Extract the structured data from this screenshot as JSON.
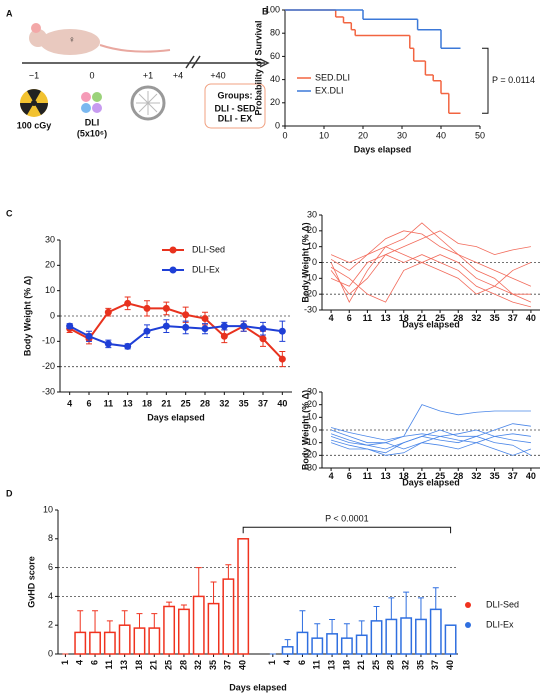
{
  "panel_a": {
    "panel": "A",
    "sex_symbol": "♀",
    "timeline": [
      "−1",
      "0",
      "+1",
      "+4",
      "+40"
    ],
    "irradiation": "100 cGy",
    "cells": "DLI",
    "dose": "(5x10⁶)",
    "groups_title": "Groups:",
    "groups": [
      "DLI - SED",
      "DLI - EX"
    ]
  },
  "chart_data": [
    {
      "type": "step",
      "panel": "B",
      "ylabel": "Probability of Survival",
      "xlabel": "Days elapsed",
      "annotation": "P = 0.0114",
      "xlim": [
        0,
        50
      ],
      "xticks": [
        0,
        10,
        20,
        30,
        40,
        50
      ],
      "ylim": [
        0,
        100
      ],
      "yticks": [
        0,
        20,
        40,
        60,
        80,
        100
      ],
      "legend": "lower left",
      "series": [
        {
          "name": "SED.DLI",
          "color": "#f26440",
          "x": [
            0,
            13,
            15,
            17,
            18,
            32,
            33,
            36,
            38,
            40,
            42,
            45
          ],
          "values": [
            100,
            94,
            89,
            83,
            78,
            67,
            56,
            44,
            39,
            28,
            11,
            11
          ]
        },
        {
          "name": "EX.DLI",
          "color": "#3b78d8",
          "x": [
            0,
            20,
            34,
            40,
            45
          ],
          "values": [
            100,
            92,
            83,
            67,
            67
          ]
        }
      ]
    },
    {
      "type": "line",
      "panel": "C",
      "ylabel": "Body Weight (% Δ)",
      "xlabel": "Days elapsed",
      "categories": [
        "4",
        "6",
        "11",
        "13",
        "18",
        "21",
        "25",
        "28",
        "32",
        "35",
        "37",
        "40"
      ],
      "ylim": [
        -30,
        30
      ],
      "yticks": [
        -30,
        -20,
        -10,
        0,
        10,
        20,
        30
      ],
      "reference_lines": [
        0,
        -20
      ],
      "legend": "upper right",
      "series": [
        {
          "name": "DLI-Sed",
          "color": "#e8321e",
          "values": [
            -5,
            -9,
            1.5,
            5,
            3,
            3,
            0.5,
            -1,
            -8,
            -4,
            -9,
            -17
          ],
          "errors": [
            1.5,
            2,
            1.5,
            2.5,
            3,
            2.5,
            3,
            2.5,
            2.5,
            2,
            3,
            3
          ]
        },
        {
          "name": "DLI-Ex",
          "color": "#1f3fd6",
          "values": [
            -4,
            -8,
            -11,
            -12,
            -6,
            -4,
            -4.5,
            -5,
            -4,
            -4,
            -5,
            -6
          ],
          "errors": [
            1,
            2,
            1.5,
            1,
            2.5,
            2.5,
            2.5,
            2,
            1.5,
            2,
            2.5,
            4
          ]
        }
      ]
    },
    {
      "type": "spaghetti",
      "ylabel": "Body Weight (% Δ)",
      "xlabel": "Days elapsed",
      "color": "#f26b5b",
      "categories": [
        "4",
        "6",
        "11",
        "13",
        "18",
        "21",
        "25",
        "28",
        "32",
        "35",
        "37",
        "40"
      ],
      "ylim": [
        -30,
        30
      ],
      "yticks": [
        -30,
        -20,
        -10,
        0,
        10,
        20,
        30
      ],
      "reference_lines": [
        0,
        -20
      ],
      "series": [
        {
          "values": [
            -5,
            -20,
            -10,
            5,
            10,
            15,
            20,
            12,
            10,
            5,
            8,
            10
          ]
        },
        {
          "values": [
            0,
            -25,
            -5,
            10,
            15,
            25,
            15,
            5,
            0,
            -5,
            -10,
            -15
          ]
        },
        {
          "values": [
            -10,
            -15,
            0,
            5,
            0,
            5,
            0,
            -5,
            -15,
            -20,
            -25,
            -28
          ]
        },
        {
          "values": [
            5,
            0,
            5,
            15,
            20,
            18,
            10,
            5,
            -5,
            -10,
            -20,
            -25
          ]
        },
        {
          "values": [
            -3,
            -10,
            -20,
            -25,
            -5,
            0,
            5,
            0,
            -10,
            -15,
            -20,
            -20
          ]
        },
        {
          "values": [
            2,
            -5,
            5,
            10,
            5,
            0,
            -5,
            -10,
            -20,
            -15,
            -5,
            0
          ]
        }
      ]
    },
    {
      "type": "spaghetti",
      "ylabel": "Body Weight (% Δ)",
      "xlabel": "Days elapsed",
      "color": "#4a86e8",
      "categories": [
        "4",
        "6",
        "11",
        "13",
        "18",
        "21",
        "25",
        "28",
        "32",
        "35",
        "37",
        "40"
      ],
      "ylim": [
        -30,
        30
      ],
      "yticks": [
        -30,
        -20,
        -10,
        0,
        10,
        20,
        30
      ],
      "reference_lines": [
        0,
        -20
      ],
      "series": [
        {
          "values": [
            -5,
            -10,
            -12,
            -15,
            -10,
            -5,
            0,
            -5,
            -5,
            0,
            5,
            3
          ]
        },
        {
          "values": [
            0,
            -5,
            -10,
            -10,
            -5,
            20,
            15,
            12,
            14,
            15,
            15,
            15
          ]
        },
        {
          "values": [
            -10,
            -15,
            -15,
            -18,
            -10,
            -5,
            -8,
            -10,
            -5,
            -10,
            -12,
            -20
          ]
        },
        {
          "values": [
            -3,
            -8,
            -12,
            -10,
            -15,
            -10,
            -5,
            -3,
            0,
            -5,
            -8,
            -10
          ]
        },
        {
          "values": [
            2,
            -2,
            -5,
            -8,
            -5,
            -3,
            -5,
            -8,
            -10,
            -5,
            -3,
            -5
          ]
        },
        {
          "values": [
            -8,
            -12,
            -15,
            -20,
            -18,
            -10,
            -12,
            -15,
            -10,
            -15,
            -20,
            -15
          ]
        }
      ]
    },
    {
      "type": "bar",
      "panel": "D",
      "ylabel": "GvHD score",
      "xlabel": "Days elapsed",
      "annotation": "P < 0.0001",
      "categories": [
        "1",
        "4",
        "6",
        "11",
        "13",
        "18",
        "21",
        "25",
        "28",
        "32",
        "35",
        "37",
        "40"
      ],
      "ylim": [
        0,
        10
      ],
      "yticks": [
        0,
        2,
        4,
        6,
        8,
        10
      ],
      "reference_lines": [
        4,
        6
      ],
      "legend": "right",
      "series": [
        {
          "name": "DLI-Sed",
          "color": "#f0321e",
          "values": [
            0,
            1.5,
            1.5,
            1.5,
            2,
            1.8,
            1.8,
            3.3,
            3.1,
            4,
            3.5,
            5.2,
            8
          ],
          "errors": [
            0,
            1.5,
            1.5,
            0.8,
            1,
            1,
            1,
            0.3,
            0.3,
            2,
            1.5,
            1,
            0
          ]
        },
        {
          "name": "DLI-Ex",
          "color": "#2f6fe0",
          "values": [
            0,
            0.5,
            1.5,
            1.1,
            1.4,
            1.1,
            1.3,
            2.3,
            2.4,
            2.5,
            2.4,
            3.1,
            2
          ],
          "errors": [
            0,
            0.5,
            1.5,
            1,
            1,
            1,
            1,
            1,
            1.5,
            1.8,
            1.5,
            1.5,
            0
          ]
        }
      ]
    }
  ]
}
